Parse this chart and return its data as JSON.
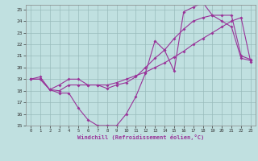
{
  "bg_color": "#c0e0e0",
  "line_color": "#993399",
  "grid_color": "#99bbbb",
  "xlabel": "Windchill (Refroidissement éolien,°C)",
  "xlim": [
    -0.5,
    23.5
  ],
  "ylim": [
    15,
    25.4
  ],
  "yticks": [
    15,
    16,
    17,
    18,
    19,
    20,
    21,
    22,
    23,
    24,
    25
  ],
  "xticks": [
    0,
    1,
    2,
    3,
    4,
    5,
    6,
    7,
    8,
    9,
    10,
    11,
    12,
    13,
    14,
    15,
    16,
    17,
    18,
    19,
    20,
    21,
    22,
    23
  ],
  "line1_x": [
    0,
    1,
    2,
    3,
    4,
    5,
    6,
    7,
    8,
    9,
    10,
    11,
    12,
    13,
    14,
    15,
    16,
    17,
    18,
    19,
    20,
    21,
    22,
    23
  ],
  "line1_y": [
    19,
    19.2,
    18.1,
    17.8,
    17.8,
    16.5,
    15.5,
    15,
    15,
    15,
    16,
    17.5,
    19.5,
    22.3,
    21.5,
    19.7,
    24.8,
    25.2,
    25.6,
    24.5,
    24.0,
    23.5,
    20.8,
    20.6
  ],
  "line2_x": [
    0,
    1,
    2,
    3,
    4,
    5,
    6,
    7,
    8,
    9,
    10,
    11,
    12,
    13,
    14,
    15,
    16,
    17,
    18,
    19,
    20,
    21,
    22,
    23
  ],
  "line2_y": [
    19,
    19.0,
    18.1,
    18.0,
    18.5,
    18.5,
    18.5,
    18.5,
    18.5,
    18.7,
    19.0,
    19.3,
    19.6,
    20.0,
    20.4,
    20.9,
    21.4,
    22.0,
    22.5,
    23.0,
    23.5,
    24.0,
    24.3,
    20.5
  ],
  "line3_x": [
    0,
    1,
    2,
    3,
    4,
    5,
    6,
    7,
    8,
    9,
    10,
    11,
    12,
    13,
    14,
    15,
    16,
    17,
    18,
    19,
    20,
    21,
    22,
    23
  ],
  "line3_y": [
    19,
    19.0,
    18.1,
    18.5,
    19.0,
    19.0,
    18.5,
    18.5,
    18.2,
    18.5,
    18.7,
    19.2,
    20.0,
    20.8,
    21.5,
    22.5,
    23.3,
    24.0,
    24.3,
    24.5,
    24.5,
    24.5,
    21.0,
    20.7
  ]
}
